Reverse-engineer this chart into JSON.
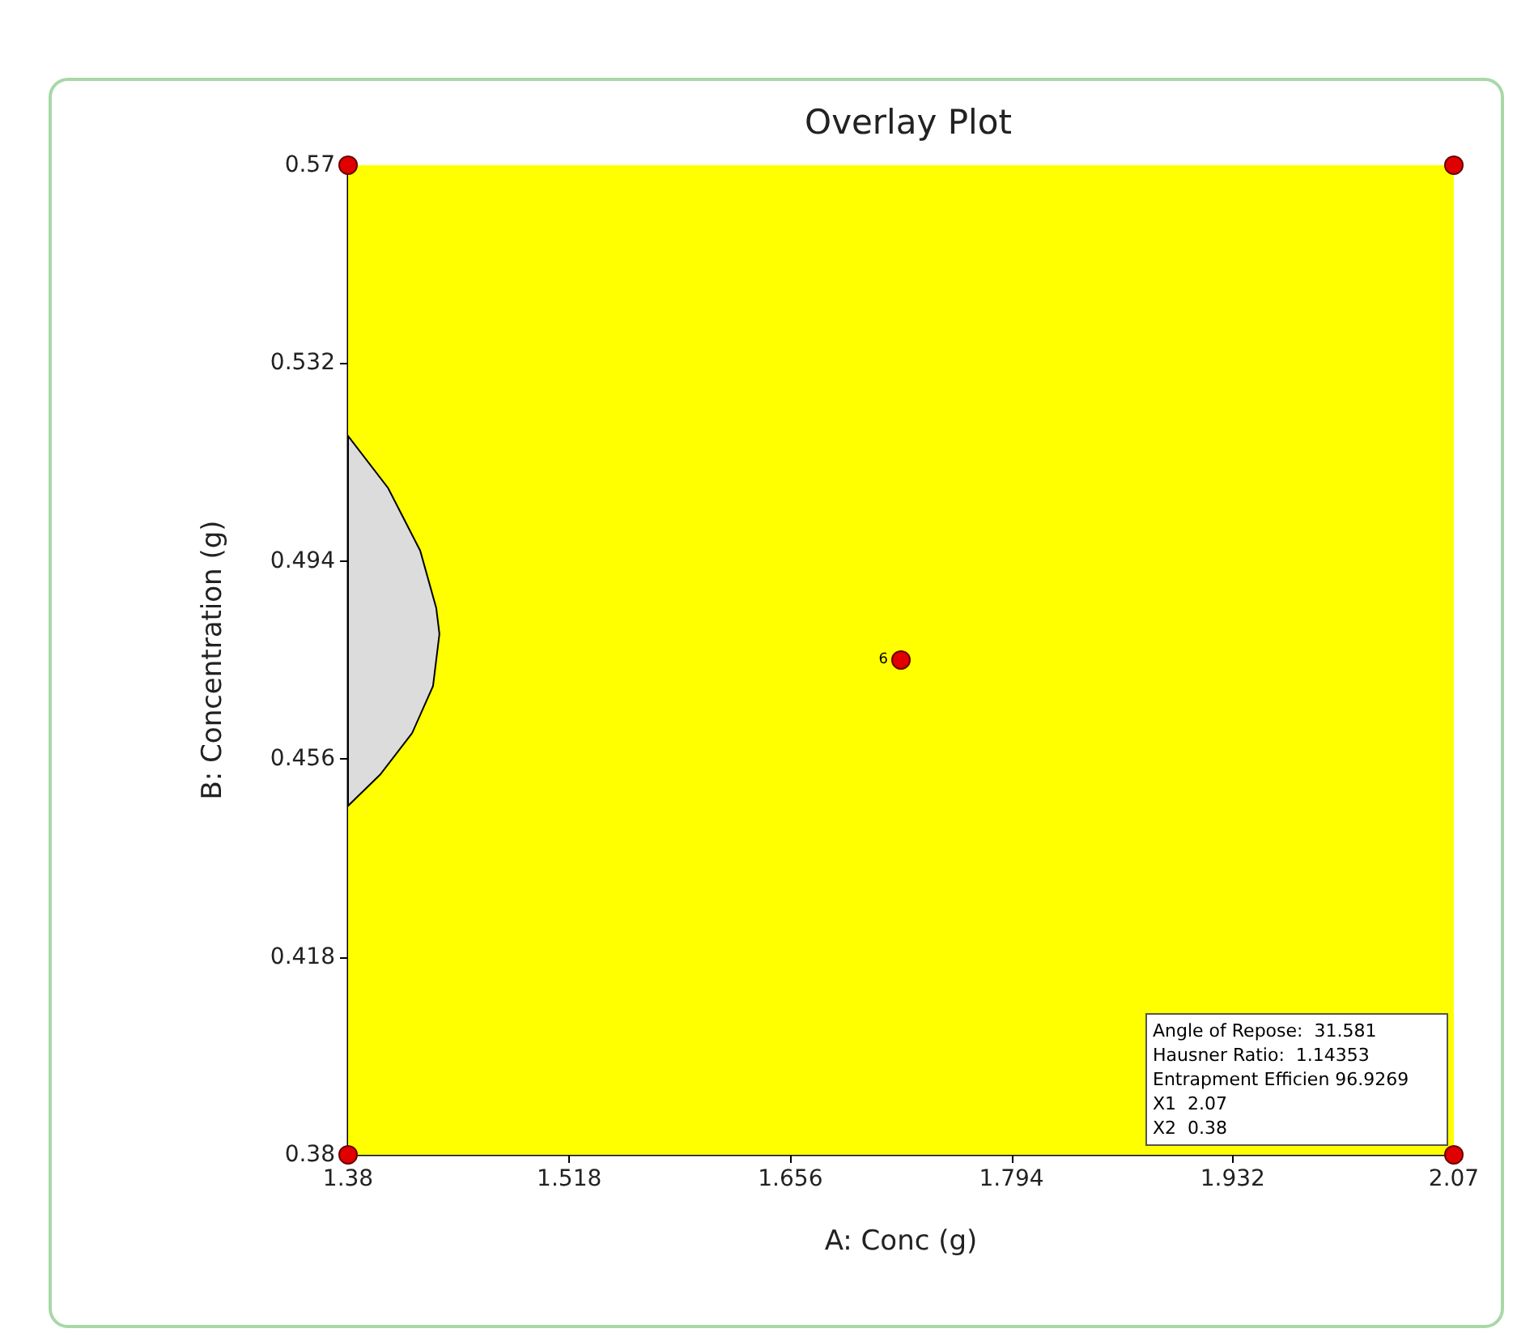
{
  "chart_data": {
    "type": "scatter",
    "title": "Overlay Plot",
    "xlabel": "A: Conc (g)",
    "ylabel": "B: Concentration (g)",
    "xlim": [
      1.38,
      2.07
    ],
    "xticks": [
      1.38,
      1.518,
      1.656,
      1.794,
      1.932,
      2.07
    ],
    "ylim": [
      0.38,
      0.57
    ],
    "yticks": [
      0.38,
      0.418,
      0.456,
      0.494,
      0.532,
      0.57
    ],
    "grid": false,
    "bands": [
      {
        "axis": "y",
        "from": 0.38,
        "to": 0.57,
        "color": "#ffff00"
      }
    ],
    "series": [
      {
        "type": "area",
        "color": "#dcdcdc",
        "x": [
          1.38,
          1.405,
          1.425,
          1.435,
          1.437,
          1.433,
          1.42,
          1.4,
          1.38
        ],
        "values": [
          0.518,
          0.508,
          0.496,
          0.485,
          0.48,
          0.47,
          0.461,
          0.453,
          0.447
        ]
      },
      {
        "marker": "circle",
        "color": "#e00000",
        "x": [
          1.38,
          1.38,
          2.07,
          2.07,
          1.725
        ],
        "values": [
          0.38,
          0.57,
          0.57,
          0.38,
          0.475
        ]
      }
    ],
    "annotations": [
      {
        "text": "6",
        "x": 1.725,
        "y": 0.475
      },
      {
        "text": "Angle of Repose:  31.581\nHausner Ratio:  1.14353\nEntrapment Efficien 96.9269\nX1  2.07\nX2  0.38",
        "x": 2.07,
        "y": 0.38
      }
    ]
  }
}
